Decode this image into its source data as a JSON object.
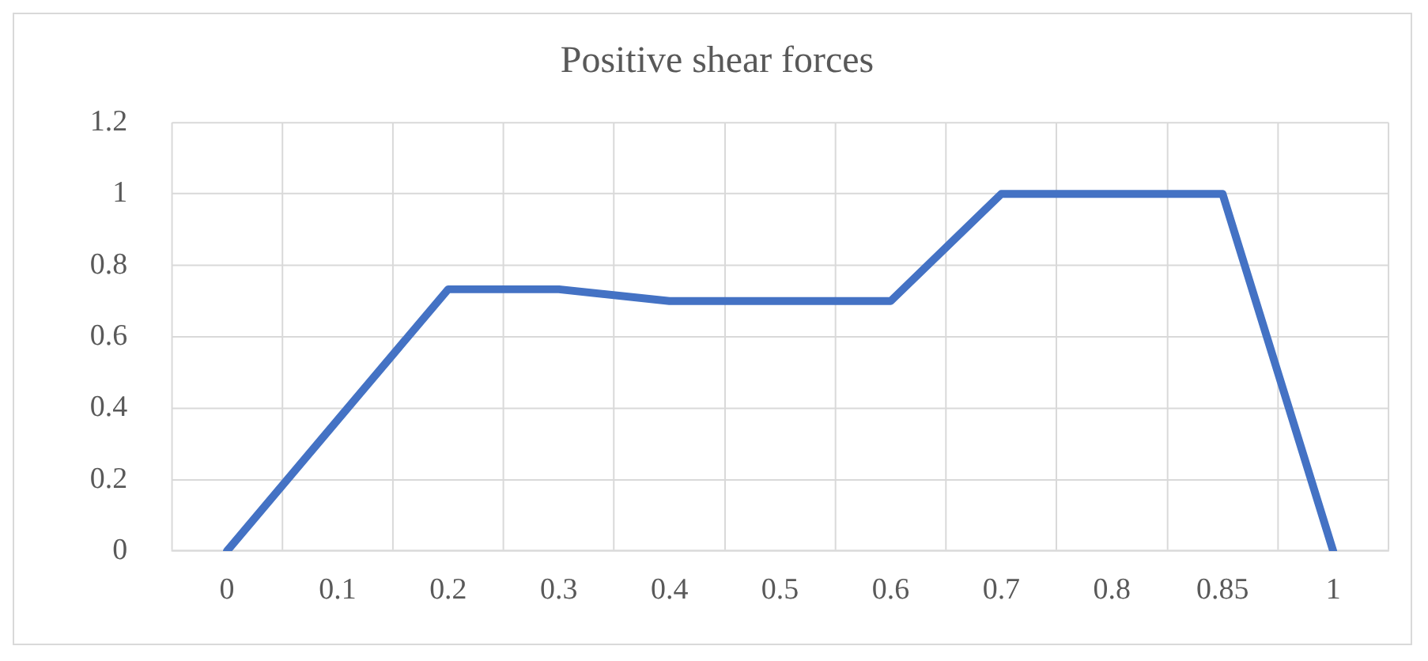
{
  "chart_data": {
    "type": "line",
    "title": "Positive shear forces",
    "categories": [
      "0",
      "0.1",
      "0.2",
      "0.3",
      "0.4",
      "0.5",
      "0.6",
      "0.7",
      "0.8",
      "0.85",
      "1"
    ],
    "series": [
      {
        "color": "#4472c4",
        "values": [
          0,
          0.367,
          0.733,
          0.733,
          0.7,
          0.7,
          0.7,
          1,
          1,
          1,
          0
        ]
      }
    ],
    "ylim": [
      0,
      1.2
    ],
    "yticks": [
      0,
      0.2,
      0.4,
      0.6,
      0.8,
      1,
      1.2
    ],
    "grid": true,
    "legend": false,
    "marker": "none",
    "line_style": "solid"
  }
}
